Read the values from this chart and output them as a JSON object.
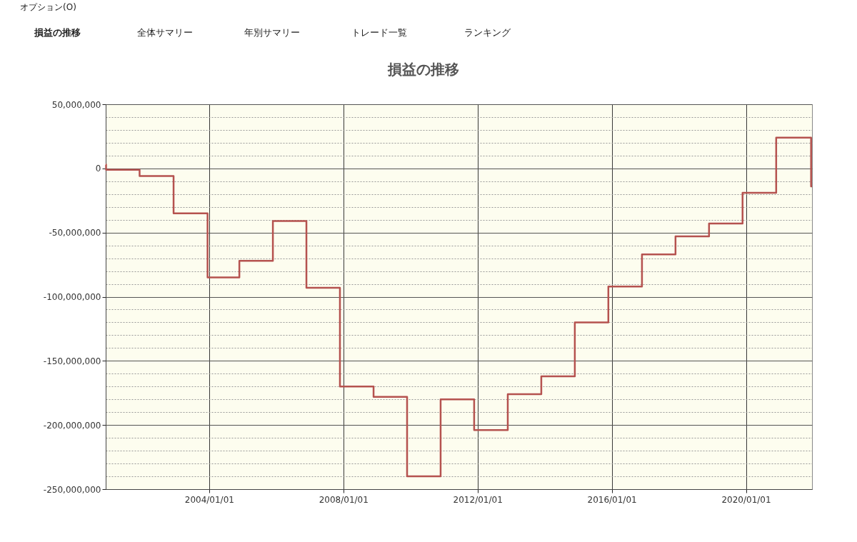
{
  "chart_data": {
    "type": "step",
    "title": "損益の推移",
    "annotations": [
      "オプション(O)",
      "損益の推移",
      "全体サマリー",
      "年別サマリー",
      "トレード一覧",
      "ランキング"
    ],
    "x": [
      "2000-12-01",
      "2000-12-05",
      "2001-12-05",
      "2002-12-10",
      "2003-12-15",
      "2004-11-25",
      "2005-11-25",
      "2006-11-25",
      "2007-11-25",
      "2008-11-25",
      "2009-11-25",
      "2010-11-25",
      "2011-11-25",
      "2012-11-25",
      "2013-11-25",
      "2014-11-25",
      "2015-11-25",
      "2016-11-25",
      "2017-11-25",
      "2018-11-25",
      "2019-11-25",
      "2020-11-25",
      "2021-12-10",
      "2021-12-20"
    ],
    "series": [
      {
        "color": "#b5524f",
        "values": [
          3000000,
          -1000000,
          -6000000,
          -35000000,
          -85000000,
          -72000000,
          -41000000,
          -93000000,
          -170000000,
          -178000000,
          -240000000,
          -180000000,
          -204000000,
          -176000000,
          -162000000,
          -120000000,
          -92000000,
          -67000000,
          -53000000,
          -43000000,
          -19000000,
          24000000,
          -14000000,
          -14000000
        ]
      }
    ],
    "xlim": [
      "2000-12-01",
      "2021-12-20"
    ],
    "xticks": [
      {
        "value": "2004-01-01",
        "label": "2004/01/01"
      },
      {
        "value": "2008-01-01",
        "label": "2008/01/01"
      },
      {
        "value": "2012-01-01",
        "label": "2012/01/01"
      },
      {
        "value": "2016-01-01",
        "label": "2016/01/01"
      },
      {
        "value": "2020-01-01",
        "label": "2020/01/01"
      }
    ],
    "ylim": [
      -250000000,
      50000000
    ],
    "yticks": [
      {
        "value": -250000000,
        "label": "-250,000,000"
      },
      {
        "value": -240000000,
        "label": null
      },
      {
        "value": -230000000,
        "label": null
      },
      {
        "value": -220000000,
        "label": null
      },
      {
        "value": -210000000,
        "label": null
      },
      {
        "value": -200000000,
        "label": "-200,000,000"
      },
      {
        "value": -190000000,
        "label": null
      },
      {
        "value": -180000000,
        "label": null
      },
      {
        "value": -170000000,
        "label": null
      },
      {
        "value": -160000000,
        "label": null
      },
      {
        "value": -150000000,
        "label": "-150,000,000"
      },
      {
        "value": -140000000,
        "label": null
      },
      {
        "value": -130000000,
        "label": null
      },
      {
        "value": -120000000,
        "label": null
      },
      {
        "value": -110000000,
        "label": null
      },
      {
        "value": -100000000,
        "label": "-100,000,000"
      },
      {
        "value": -90000000,
        "label": null
      },
      {
        "value": -80000000,
        "label": null
      },
      {
        "value": -70000000,
        "label": null
      },
      {
        "value": -60000000,
        "label": null
      },
      {
        "value": -50000000,
        "label": "-50,000,000"
      },
      {
        "value": -40000000,
        "label": null
      },
      {
        "value": -30000000,
        "label": null
      },
      {
        "value": -20000000,
        "label": null
      },
      {
        "value": -10000000,
        "label": null
      },
      0,
      {
        "value": 10000000,
        "label": null
      },
      {
        "value": 20000000,
        "label": null
      },
      {
        "value": 30000000,
        "label": null
      },
      {
        "value": 40000000,
        "label": null
      },
      {
        "value": 50000000,
        "label": "50,000,000"
      }
    ],
    "grid": true,
    "marker": "none",
    "line_style": "solid"
  }
}
